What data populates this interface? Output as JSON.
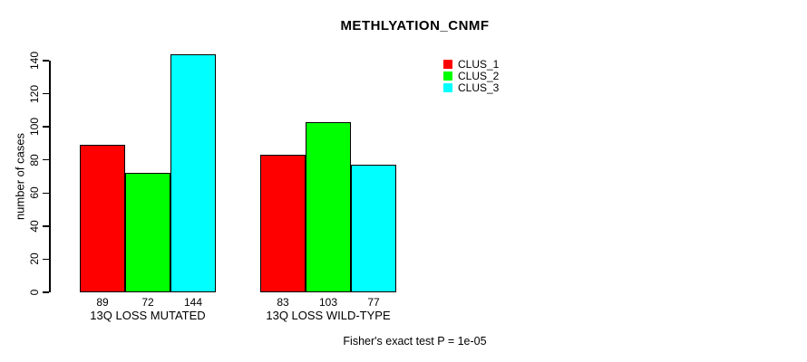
{
  "chart_data": {
    "type": "bar",
    "title": "METHLYATION_CNMF",
    "xlabel": "",
    "ylabel": "number of cases",
    "ylim": [
      0,
      140
    ],
    "y_ticks": [
      0,
      20,
      40,
      60,
      80,
      100,
      120,
      140
    ],
    "grid": false,
    "legend_position": "top-right-inside",
    "categories": [
      "13Q LOSS MUTATED",
      "13Q LOSS WILD-TYPE"
    ],
    "series": [
      {
        "name": "CLUS_1",
        "color": "#ff0000",
        "values": [
          89,
          83
        ]
      },
      {
        "name": "CLUS_2",
        "color": "#00ff00",
        "values": [
          72,
          103
        ]
      },
      {
        "name": "CLUS_3",
        "color": "#00ffff",
        "values": [
          144,
          77
        ]
      }
    ],
    "bar_value_labels": [
      [
        89,
        72,
        144
      ],
      [
        83,
        103,
        77
      ]
    ],
    "annotation": "Fisher's exact test P = 1e-05"
  }
}
